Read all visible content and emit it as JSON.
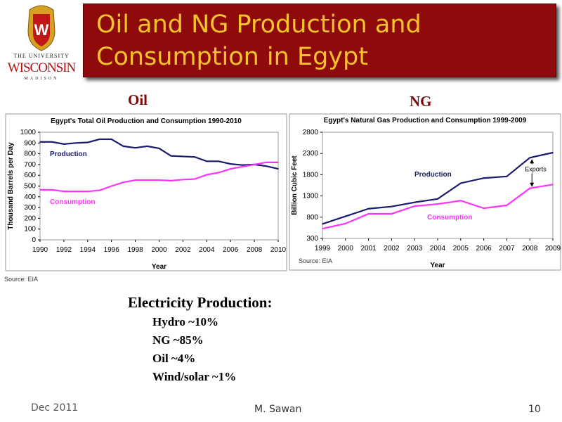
{
  "logo": {
    "line1": "THE UNIVERSITY",
    "line_of": "of",
    "line2": "WISCONSIN",
    "line3": "MADISON"
  },
  "title": {
    "line1": "Oil and NG Production and",
    "line2": "Consumption in Egypt"
  },
  "labels": {
    "oil": "Oil",
    "ng": "NG"
  },
  "chart_data": [
    {
      "type": "line",
      "title": "Egypt's Total Oil Production and Consumption 1990-2010",
      "xlabel": "Year",
      "ylabel": "Thousand Barrels per Day",
      "x": [
        1990,
        1991,
        1992,
        1993,
        1994,
        1995,
        1996,
        1997,
        1998,
        1999,
        2000,
        2001,
        2002,
        2003,
        2004,
        2005,
        2006,
        2007,
        2008,
        2009,
        2010
      ],
      "xticks": [
        "1990",
        "1992",
        "1994",
        "1996",
        "1998",
        "2000",
        "2002",
        "2004",
        "2006",
        "2008",
        "2010"
      ],
      "yticks": [
        "0",
        "100",
        "200",
        "300",
        "400",
        "500",
        "600",
        "700",
        "800",
        "900",
        "1000"
      ],
      "xlim": [
        1990,
        2010
      ],
      "ylim": [
        0,
        1000
      ],
      "series": [
        {
          "name": "Production",
          "color": "#1a1a6e",
          "values": [
            910,
            910,
            890,
            900,
            905,
            935,
            935,
            870,
            855,
            870,
            850,
            780,
            775,
            770,
            730,
            730,
            705,
            695,
            700,
            685,
            660
          ]
        },
        {
          "name": "Consumption",
          "color": "#ff33ff",
          "values": [
            465,
            465,
            450,
            450,
            450,
            460,
            500,
            535,
            555,
            555,
            555,
            550,
            560,
            565,
            605,
            625,
            660,
            680,
            700,
            720,
            720
          ]
        }
      ],
      "source": "Source: EIA"
    },
    {
      "type": "line",
      "title": "Egypt's Natural Gas Production and Consumption 1999-2009",
      "xlabel": "Year",
      "ylabel": "Billion Cubic Feet",
      "x": [
        1999,
        2000,
        2001,
        2002,
        2003,
        2004,
        2005,
        2006,
        2007,
        2008,
        2009
      ],
      "xticks": [
        "1999",
        "2000",
        "2001",
        "2002",
        "2003",
        "2004",
        "2005",
        "2006",
        "2007",
        "2008",
        "2009"
      ],
      "yticks": [
        "300",
        "800",
        "1300",
        "1800",
        "2300",
        "2800"
      ],
      "xlim": [
        1999,
        2009
      ],
      "ylim": [
        300,
        2800
      ],
      "series": [
        {
          "name": "Production",
          "color": "#1a1a6e",
          "values": [
            640,
            820,
            1000,
            1050,
            1150,
            1230,
            1600,
            1720,
            1760,
            2200,
            2320
          ]
        },
        {
          "name": "Consumption",
          "color": "#ff33ff",
          "values": [
            530,
            650,
            880,
            880,
            1060,
            1110,
            1190,
            1010,
            1080,
            1480,
            1570
          ]
        }
      ],
      "annotation": "Exports",
      "source": "Source: EIA"
    }
  ],
  "electricity": {
    "heading": "Electricity Production:",
    "items": [
      "Hydro ~10%",
      "NG ~85%",
      "Oil ~4%",
      "Wind/solar ~1%"
    ]
  },
  "footer": {
    "date": "Dec 2011",
    "author": "M. Sawan",
    "page": "10"
  }
}
